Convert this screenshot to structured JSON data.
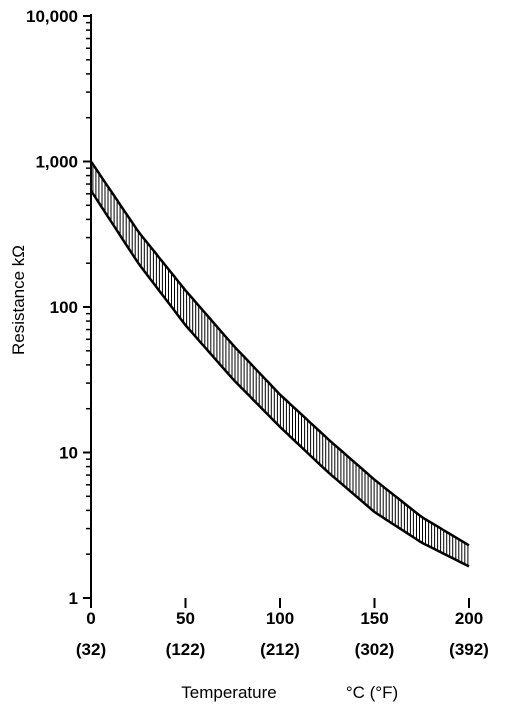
{
  "chart_data": {
    "type": "area",
    "title": "",
    "xlabel": "Temperature",
    "xlabel_units": "°C (°F)",
    "ylabel": "Resistance kΩ",
    "yscale": "log",
    "xlim": [
      0,
      200
    ],
    "ylim": [
      1,
      10000
    ],
    "x_ticks": [
      {
        "value": 0,
        "label": "0",
        "sublabel": "(32)"
      },
      {
        "value": 50,
        "label": "50",
        "sublabel": "(122)"
      },
      {
        "value": 100,
        "label": "100",
        "sublabel": "(212)"
      },
      {
        "value": 150,
        "label": "150",
        "sublabel": "(302)"
      },
      {
        "value": 200,
        "label": "200",
        "sublabel": "(392)"
      }
    ],
    "y_ticks": [
      {
        "value": 1,
        "label": "1"
      },
      {
        "value": 10,
        "label": "10"
      },
      {
        "value": 100,
        "label": "100"
      },
      {
        "value": 1000,
        "label": "1,000"
      },
      {
        "value": 10000,
        "label": "10,000"
      }
    ],
    "grid": false,
    "band": {
      "x": [
        0,
        25,
        50,
        75,
        100,
        125,
        150,
        175,
        200
      ],
      "upper": [
        1000,
        330,
        130,
        55,
        25,
        12.5,
        6.5,
        3.6,
        2.3
      ],
      "lower": [
        630,
        200,
        75,
        32,
        15,
        7.4,
        3.9,
        2.4,
        1.65
      ]
    },
    "band_fill": "vertical-hatch",
    "color": "#000000"
  }
}
